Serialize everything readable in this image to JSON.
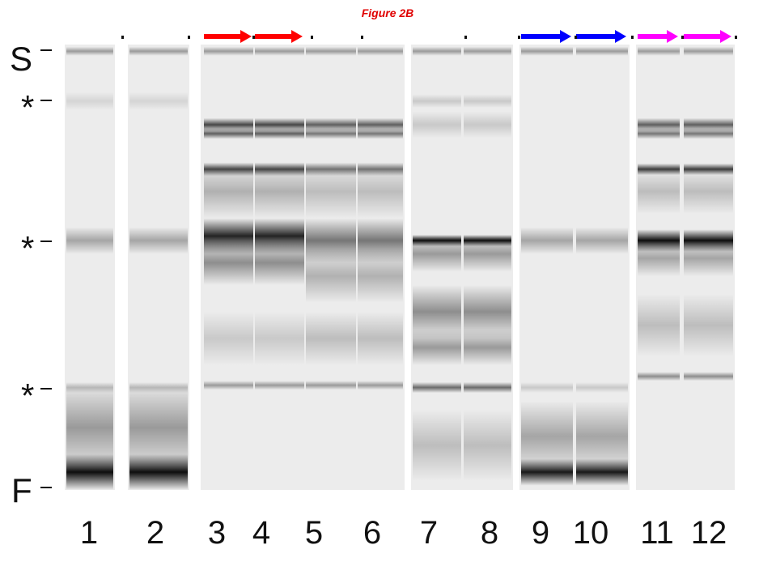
{
  "figure_title": "Figure 2B",
  "markers": {
    "S": "S",
    "star1": "*",
    "star2": "*",
    "star3": "*",
    "F": "F"
  },
  "lanes": [
    "1",
    "2",
    "3",
    "4",
    "5",
    "6",
    "7",
    "8",
    "9",
    "10",
    "11",
    "12"
  ],
  "arrows": [
    {
      "lane": "3",
      "color": "#ff0000"
    },
    {
      "lane": "4",
      "color": "#ff0000"
    },
    {
      "lane": "9",
      "color": "#0000ff"
    },
    {
      "lane": "10",
      "color": "#0000ff"
    },
    {
      "lane": "11",
      "color": "#ff00ff"
    },
    {
      "lane": "12",
      "color": "#ff00ff"
    }
  ]
}
